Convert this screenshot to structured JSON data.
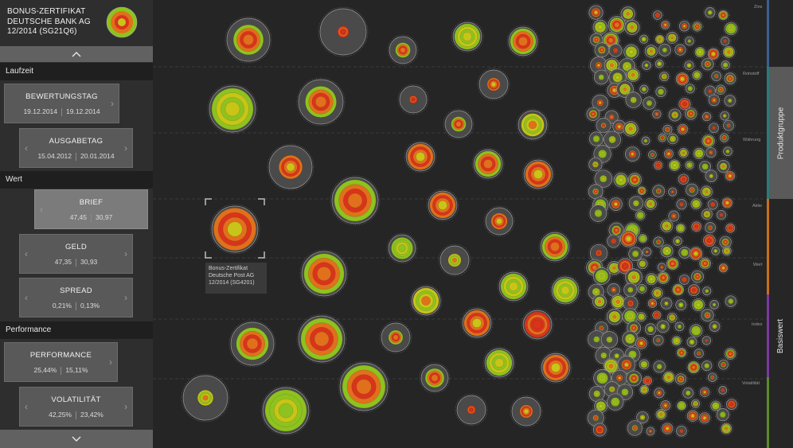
{
  "header": {
    "line1": "BONUS-ZERTIFIKAT",
    "line2": "DEUTSCHE BANK AG",
    "line3": "12/2014  (SG21Q6)"
  },
  "sections": {
    "laufzeit": "Laufzeit",
    "wert": "Wert",
    "performance": "Performance"
  },
  "controls": {
    "bewertungstag": {
      "title": "BEWERTUNGSTAG",
      "from": "19.12.2014",
      "to": "19.12.2014"
    },
    "ausgabetag": {
      "title": "AUSGABETAG",
      "from": "15.04.2012",
      "to": "20.01.2014"
    },
    "brief": {
      "title": "BRIEF",
      "from": "47,45",
      "to": "30,97"
    },
    "geld": {
      "title": "GELD",
      "from": "47,35",
      "to": "30,93"
    },
    "spread": {
      "title": "SPREAD",
      "from": "0,21%",
      "to": "0,13%"
    },
    "performance": {
      "title": "PERFORMANCE",
      "from": "25,44%",
      "to": "15,11%"
    },
    "volatilitaet": {
      "title": "VOLATILITÄT",
      "from": "42,25%",
      "to": "23,42%"
    }
  },
  "row_labels": [
    "Zins",
    "Rohstoff",
    "Währung",
    "Aktie",
    "Wert",
    "Index",
    "Volatilität"
  ],
  "tooltip": {
    "line1": "Bonus-Zertifikat",
    "line2": "Deutsche Post AG",
    "line3": "12/2014 (SG4201)"
  },
  "right_rail": {
    "tab_produktgruppe": "Produktgruppe",
    "tab_basiswert": "Basiswert"
  },
  "icons": {
    "collapse_up": "chevron-up-icon",
    "collapse_down": "chevron-down-icon"
  },
  "colors": {
    "green": "#8ec21f",
    "yellow": "#c8c418",
    "orange": "#e0701c",
    "red": "#d8341c",
    "bubble_bg": "#4a4a4a",
    "rail_strips": [
      "#3e5f8f",
      "#2c7a7a",
      "#c8701c",
      "#7a3aa0",
      "#5a8a2a"
    ]
  }
}
